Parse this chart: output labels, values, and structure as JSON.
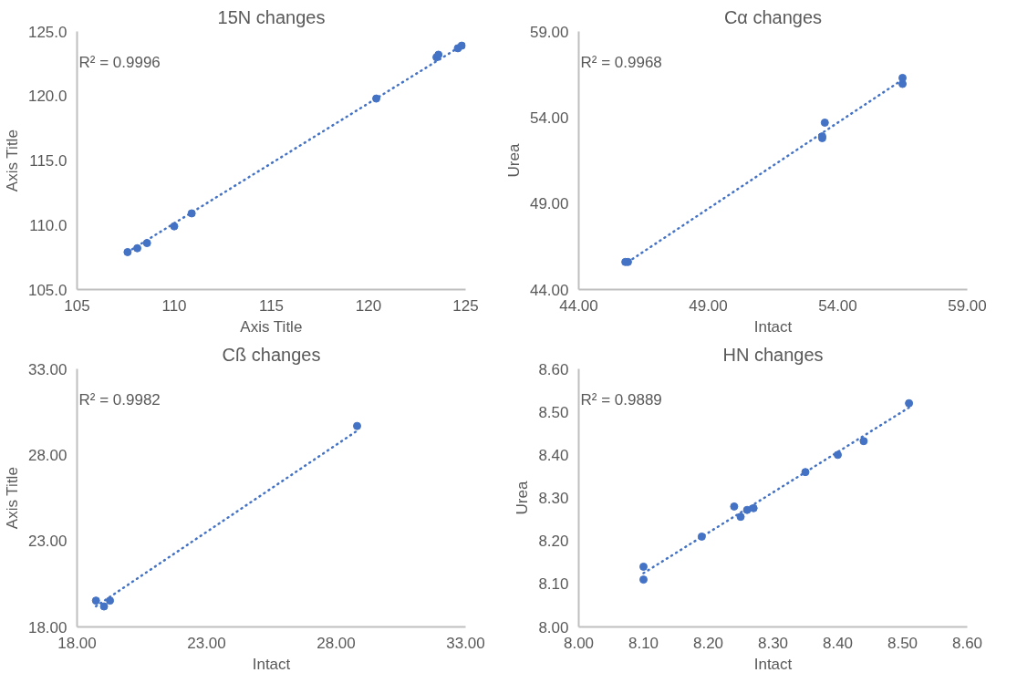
{
  "chart_data": [
    {
      "type": "scatter",
      "title": "15N changes",
      "xlabel": "Axis Title",
      "ylabel": "Axis Title",
      "xlim": [
        105,
        125
      ],
      "ylim": [
        105,
        125
      ],
      "xticks": [
        105,
        110,
        115,
        120,
        125
      ],
      "yticks": [
        {
          "value": 105,
          "label": "105.0"
        },
        {
          "value": 110,
          "label": "110.0"
        },
        {
          "value": 115,
          "label": "115.0"
        },
        {
          "value": 120,
          "label": "120.0"
        },
        {
          "value": 125,
          "label": "125.0"
        }
      ],
      "grid": false,
      "marker": "circle",
      "annotations": [
        "R² = 0.9996"
      ],
      "series": [
        {
          "color": "#4472c4",
          "x": [
            107.6,
            108.1,
            108.6,
            110.0,
            110.9,
            120.4,
            123.5,
            123.6,
            124.6,
            124.8
          ],
          "values": [
            107.9,
            108.2,
            108.6,
            109.9,
            110.9,
            119.8,
            123.0,
            123.2,
            123.7,
            123.9
          ]
        },
        {
          "type": "line",
          "color": "#4472c4",
          "line_style": "dotted",
          "marker": "none",
          "x": [
            107.6,
            124.8
          ],
          "values": [
            107.9,
            123.9
          ]
        }
      ]
    },
    {
      "type": "scatter",
      "title": "Cα changes",
      "xlabel": "Intact",
      "ylabel": "Urea",
      "xlim": [
        44,
        59
      ],
      "ylim": [
        44,
        59
      ],
      "xticks": [
        {
          "value": 44,
          "label": "44.00"
        },
        {
          "value": 49,
          "label": "49.00"
        },
        {
          "value": 54,
          "label": "54.00"
        },
        {
          "value": 59,
          "label": "59.00"
        }
      ],
      "yticks": [
        {
          "value": 44,
          "label": "44.00"
        },
        {
          "value": 49,
          "label": "49.00"
        },
        {
          "value": 54,
          "label": "54.00"
        },
        {
          "value": 59,
          "label": "59.00"
        }
      ],
      "grid": false,
      "marker": "circle",
      "annotations": [
        "R² = 0.9968"
      ],
      "series": [
        {
          "color": "#4472c4",
          "x": [
            45.9,
            45.8,
            53.5,
            53.4,
            53.4,
            56.5,
            56.5
          ],
          "values": [
            45.6,
            45.6,
            53.7,
            52.8,
            52.9,
            55.95,
            56.3
          ]
        },
        {
          "type": "line",
          "color": "#4472c4",
          "line_style": "dotted",
          "marker": "none",
          "x": [
            45.9,
            56.5
          ],
          "values": [
            45.6,
            56.2
          ]
        }
      ]
    },
    {
      "type": "scatter",
      "title": "Cß changes",
      "xlabel": "Intact",
      "ylabel": "Axis Title",
      "xlim": [
        18,
        33
      ],
      "ylim": [
        18,
        33
      ],
      "xticks": [
        {
          "value": 18,
          "label": "18.00"
        },
        {
          "value": 23,
          "label": "23.00"
        },
        {
          "value": 28,
          "label": "28.00"
        },
        {
          "value": 33,
          "label": "33.00"
        }
      ],
      "yticks": [
        {
          "value": 18,
          "label": "18.00"
        },
        {
          "value": 23,
          "label": "23.00"
        },
        {
          "value": 28,
          "label": "28.00"
        },
        {
          "value": 33,
          "label": "33.00"
        }
      ],
      "grid": false,
      "marker": "circle",
      "annotations": [
        "R² = 0.9982"
      ],
      "series": [
        {
          "color": "#4472c4",
          "x": [
            18.73,
            19.04,
            19.27,
            28.81
          ],
          "values": [
            19.53,
            19.19,
            19.53,
            29.68
          ]
        },
        {
          "type": "line",
          "color": "#4472c4",
          "line_style": "dotted",
          "marker": "none",
          "x": [
            18.73,
            28.81
          ],
          "values": [
            19.2,
            29.4
          ]
        }
      ]
    },
    {
      "type": "scatter",
      "title": "HN changes",
      "xlabel": "Intact",
      "ylabel": "Urea",
      "xlim": [
        8.0,
        8.6
      ],
      "ylim": [
        8.0,
        8.6
      ],
      "xticks": [
        {
          "value": 8.0,
          "label": "8.00"
        },
        {
          "value": 8.1,
          "label": "8.10"
        },
        {
          "value": 8.2,
          "label": "8.20"
        },
        {
          "value": 8.3,
          "label": "8.30"
        },
        {
          "value": 8.4,
          "label": "8.40"
        },
        {
          "value": 8.5,
          "label": "8.50"
        },
        {
          "value": 8.6,
          "label": "8.60"
        }
      ],
      "yticks": [
        {
          "value": 8.0,
          "label": "8.00"
        },
        {
          "value": 8.1,
          "label": "8.10"
        },
        {
          "value": 8.2,
          "label": "8.20"
        },
        {
          "value": 8.3,
          "label": "8.30"
        },
        {
          "value": 8.4,
          "label": "8.40"
        },
        {
          "value": 8.5,
          "label": "8.50"
        },
        {
          "value": 8.6,
          "label": "8.60"
        }
      ],
      "grid": false,
      "marker": "circle",
      "annotations": [
        "R² = 0.9889"
      ],
      "series": [
        {
          "color": "#4472c4",
          "x": [
            8.1,
            8.1,
            8.19,
            8.24,
            8.25,
            8.26,
            8.27,
            8.35,
            8.4,
            8.44,
            8.51
          ],
          "values": [
            8.14,
            8.11,
            8.21,
            8.28,
            8.256,
            8.272,
            8.276,
            8.36,
            8.4,
            8.432,
            8.52
          ]
        },
        {
          "type": "line",
          "color": "#4472c4",
          "line_style": "dotted",
          "marker": "none",
          "x": [
            8.1,
            8.51
          ],
          "values": [
            8.125,
            8.51
          ]
        }
      ]
    }
  ]
}
